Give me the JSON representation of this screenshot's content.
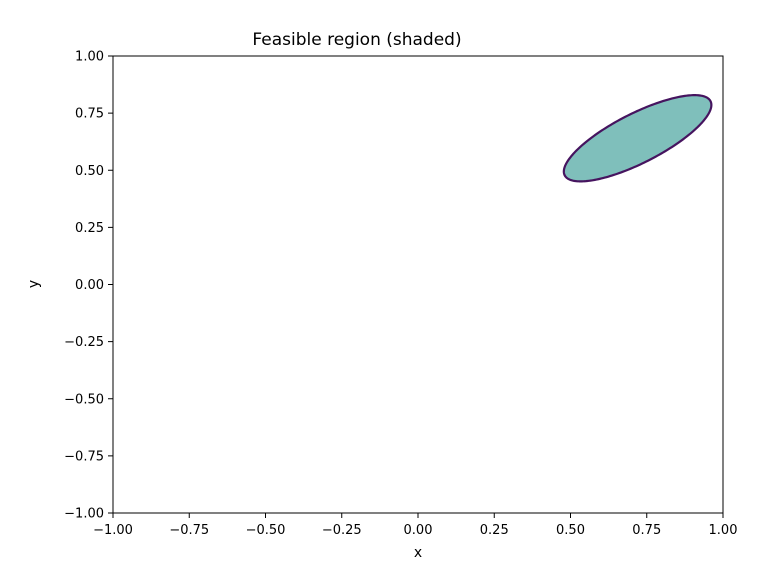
{
  "chart_data": {
    "type": "area",
    "title": "Feasible region (shaded)",
    "xlabel": "x",
    "ylabel": "y",
    "xlim": [
      -1.0,
      1.0
    ],
    "ylim": [
      -1.0,
      1.0
    ],
    "xticks": [
      -1.0,
      -0.75,
      -0.5,
      -0.25,
      0.0,
      0.25,
      0.5,
      0.75,
      1.0
    ],
    "yticks": [
      -1.0,
      -0.75,
      -0.5,
      -0.25,
      0.0,
      0.25,
      0.5,
      0.75,
      1.0
    ],
    "xtick_labels": [
      "−1.00",
      "−0.75",
      "−0.50",
      "−0.25",
      "0.00",
      "0.25",
      "0.50",
      "0.75",
      "1.00"
    ],
    "ytick_labels": [
      "−1.00",
      "−0.75",
      "−0.50",
      "−0.25",
      "0.00",
      "0.25",
      "0.50",
      "0.75",
      "1.00"
    ],
    "grid": false,
    "region": {
      "shape": "ellipse",
      "center": [
        0.72,
        0.64
      ],
      "semi_axes": [
        0.29,
        0.1
      ],
      "rotation_deg": 36,
      "fill_color": "#7fbfbb",
      "edge_color": "#46145f"
    }
  }
}
